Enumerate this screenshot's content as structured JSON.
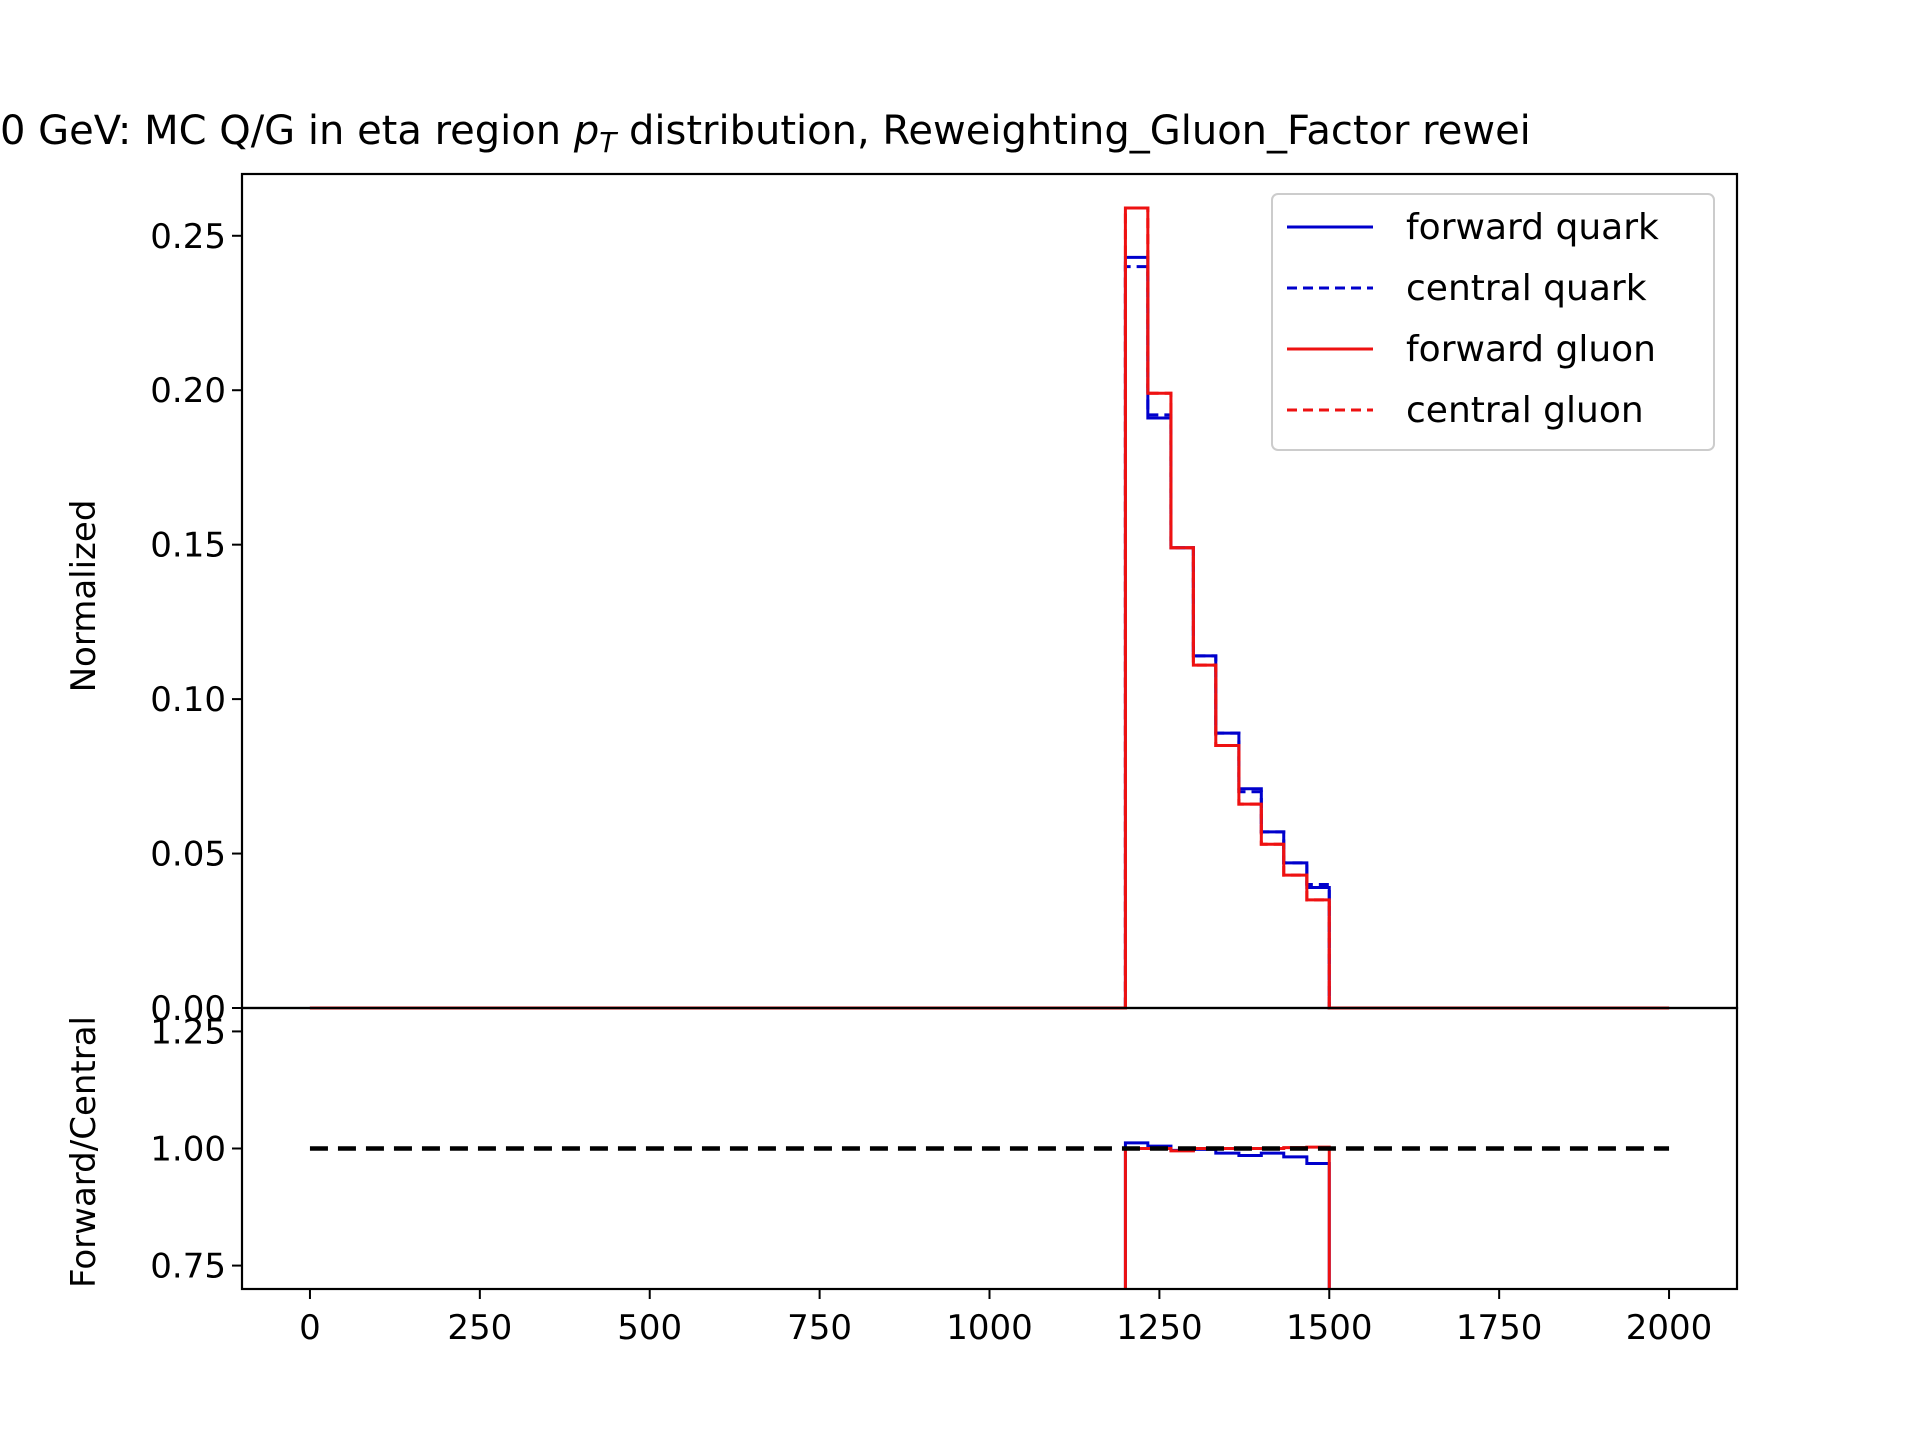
{
  "chart_data": {
    "type": "line",
    "title_text": "0 GeV: MC Q/G in eta region ",
    "title_p": "p",
    "title_sub": "T",
    "title_rest": " distribution, Reweighting_Gluon_Factor rewei",
    "xlim": [
      -100,
      2100
    ],
    "x_ticks": [
      0,
      250,
      500,
      750,
      1000,
      1250,
      1500,
      1750,
      2000
    ],
    "x_tick_labels": [
      "0",
      "250",
      "500",
      "750",
      "1000",
      "1250",
      "1500",
      "1750",
      "2000"
    ],
    "top_panel": {
      "ylabel": "Normalized",
      "ylim": [
        0,
        0.27
      ],
      "y_ticks": [
        0,
        0.05,
        0.1,
        0.15,
        0.2,
        0.25
      ],
      "y_tick_labels": [
        "0.00",
        "0.05",
        "0.10",
        "0.15",
        "0.20",
        "0.25"
      ],
      "legend_position": "top-right",
      "bin_edges": [
        0,
        1200,
        1233,
        1267,
        1300,
        1333,
        1367,
        1400,
        1433,
        1467,
        1500,
        2000
      ],
      "series": [
        {
          "name": "forward quark",
          "color": "#0000cc",
          "style": "solid",
          "values": [
            0,
            0.243,
            0.191,
            0.149,
            0.114,
            0.089,
            0.071,
            0.057,
            0.047,
            0.039,
            0
          ]
        },
        {
          "name": "central quark",
          "color": "#0000cc",
          "style": "dashed",
          "values": [
            0,
            0.24,
            0.192,
            0.149,
            0.114,
            0.089,
            0.07,
            0.057,
            0.047,
            0.04,
            0
          ]
        },
        {
          "name": "forward gluon",
          "color": "#ee1111",
          "style": "solid",
          "values": [
            0,
            0.259,
            0.199,
            0.149,
            0.111,
            0.085,
            0.066,
            0.053,
            0.043,
            0.035,
            0
          ]
        },
        {
          "name": "central gluon",
          "color": "#ee1111",
          "style": "dashed",
          "values": [
            0,
            0.259,
            0.199,
            0.149,
            0.111,
            0.085,
            0.066,
            0.053,
            0.043,
            0.035,
            0
          ]
        }
      ]
    },
    "bottom_panel": {
      "ylabel": "Forward/Central",
      "ylim": [
        0.7,
        1.3
      ],
      "y_ticks": [
        0.75,
        1.0,
        1.25
      ],
      "y_tick_labels": [
        "0.75",
        "1.00",
        "1.25"
      ],
      "reference_line": {
        "value": 1.0,
        "x_range": [
          0,
          2000
        ],
        "color": "#000000",
        "style": "dashed"
      },
      "bin_edges": [
        1200,
        1233,
        1267,
        1300,
        1333,
        1367,
        1400,
        1433,
        1467,
        1500
      ],
      "series": [
        {
          "name": "quark ratio",
          "color": "#0000cc",
          "values": [
            1.012,
            1.005,
            0.996,
            0.998,
            0.99,
            0.985,
            0.99,
            0.982,
            0.968
          ]
        },
        {
          "name": "gluon ratio",
          "color": "#ee1111",
          "values": [
            1.0,
            1.0,
            0.995,
            1.0,
            1.0,
            1.0,
            1.0,
            1.002,
            1.003
          ]
        }
      ]
    }
  }
}
